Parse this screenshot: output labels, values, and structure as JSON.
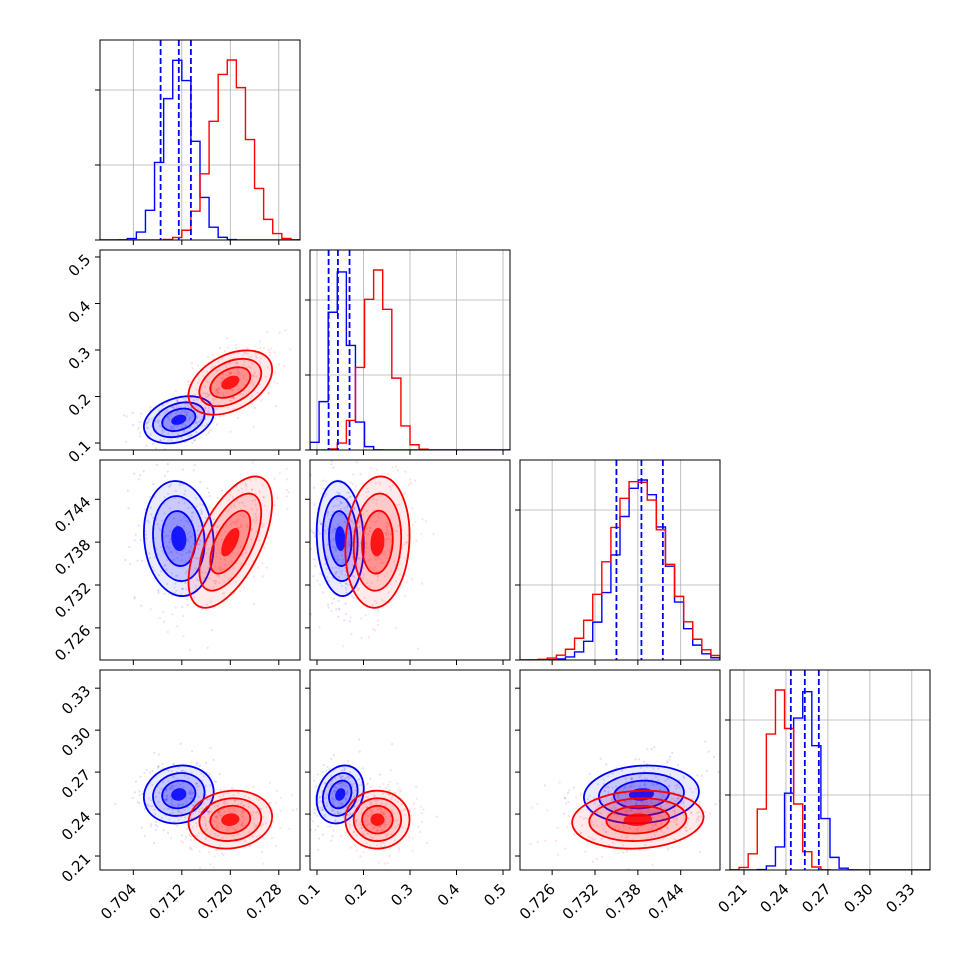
{
  "chart_data": {
    "type": "corner",
    "parameters": [
      {
        "ticks": [
          0.704,
          0.712,
          0.72,
          0.728
        ],
        "tick_labels": [
          "0.704",
          "0.712",
          "0.720",
          "0.728"
        ],
        "range": [
          0.6985,
          0.7315
        ]
      },
      {
        "ticks": [
          0.1,
          0.2,
          0.3,
          0.4,
          0.5
        ],
        "tick_labels": [
          "0.1",
          "0.2",
          "0.3",
          "0.4",
          "0.5"
        ],
        "range": [
          0.085,
          0.515
        ]
      },
      {
        "ticks": [
          0.726,
          0.732,
          0.738,
          0.744
        ],
        "tick_labels": [
          "0.726",
          "0.732",
          "0.738",
          "0.744"
        ],
        "range": [
          0.7215,
          0.7495
        ]
      },
      {
        "ticks": [
          0.21,
          0.24,
          0.27,
          0.3,
          0.33
        ],
        "tick_labels": [
          "0.21",
          "0.24",
          "0.27",
          "0.30",
          "0.33"
        ],
        "range": [
          0.2,
          0.343
        ]
      }
    ],
    "series": [
      {
        "color": "#0000ff",
        "means": [
          0.7115,
          0.15,
          0.7385,
          0.254
        ],
        "sigmas": [
          0.0025,
          0.022,
          0.0035,
          0.009
        ],
        "correlations": {
          "0-1": 0.3,
          "0-2": -0.1,
          "0-3": 0.1,
          "1-2": -0.1,
          "1-3": 0.2,
          "2-3": 0.1
        },
        "quantile_lines": [
          [
            0.7085,
            0.7115,
            0.7135
          ],
          [
            0.125,
            0.145,
            0.17
          ],
          [
            0.735,
            0.7385,
            0.7415
          ],
          [
            0.2435,
            0.2535,
            0.2635
          ]
        ]
      },
      {
        "color": "#ff0000",
        "means": [
          0.72,
          0.23,
          0.738,
          0.236
        ],
        "sigmas": [
          0.003,
          0.03,
          0.004,
          0.009
        ],
        "correlations": {
          "0-1": 0.4,
          "0-2": 0.6,
          "0-3": 0.1,
          "1-2": 0.1,
          "1-3": 0.0,
          "2-3": 0.1
        }
      }
    ],
    "grid": true
  }
}
